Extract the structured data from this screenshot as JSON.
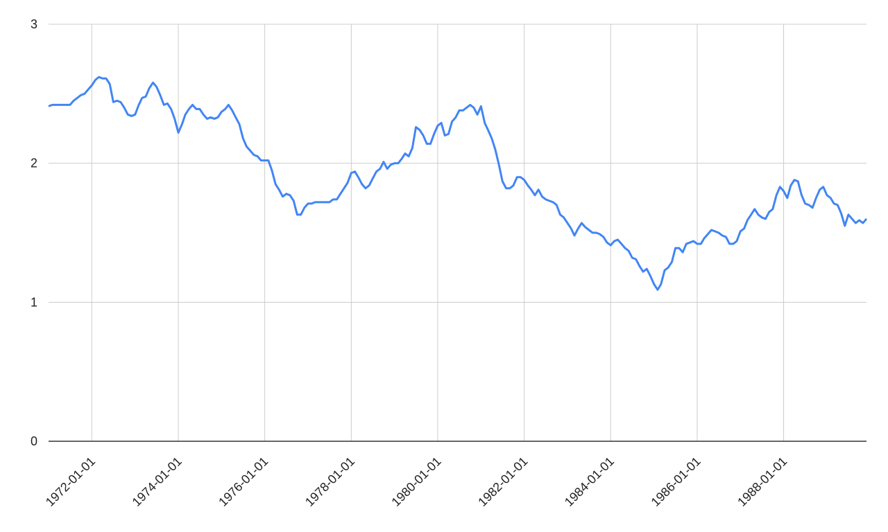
{
  "chart_data": {
    "type": "line",
    "x": [
      "1971-01-01",
      "1971-02-01",
      "1971-03-01",
      "1971-04-01",
      "1971-05-01",
      "1971-06-01",
      "1971-07-01",
      "1971-08-01",
      "1971-09-01",
      "1971-10-01",
      "1971-11-01",
      "1971-12-01",
      "1972-01-01",
      "1972-02-01",
      "1972-03-01",
      "1972-04-01",
      "1972-05-01",
      "1972-06-01",
      "1972-07-01",
      "1972-08-01",
      "1972-09-01",
      "1972-10-01",
      "1972-11-01",
      "1972-12-01",
      "1973-01-01",
      "1973-02-01",
      "1973-03-01",
      "1973-04-01",
      "1973-05-01",
      "1973-06-01",
      "1973-07-01",
      "1973-08-01",
      "1973-09-01",
      "1973-10-01",
      "1973-11-01",
      "1973-12-01",
      "1974-01-01",
      "1974-02-01",
      "1974-03-01",
      "1974-04-01",
      "1974-05-01",
      "1974-06-01",
      "1974-07-01",
      "1974-08-01",
      "1974-09-01",
      "1974-10-01",
      "1974-11-01",
      "1974-12-01",
      "1975-01-01",
      "1975-02-01",
      "1975-03-01",
      "1975-04-01",
      "1975-05-01",
      "1975-06-01",
      "1975-07-01",
      "1975-08-01",
      "1975-09-01",
      "1975-10-01",
      "1975-11-01",
      "1975-12-01",
      "1976-01-01",
      "1976-02-01",
      "1976-03-01",
      "1976-04-01",
      "1976-05-01",
      "1976-06-01",
      "1976-07-01",
      "1976-08-01",
      "1976-09-01",
      "1976-10-01",
      "1976-11-01",
      "1976-12-01",
      "1977-01-01",
      "1977-02-01",
      "1977-03-01",
      "1977-04-01",
      "1977-05-01",
      "1977-06-01",
      "1977-07-01",
      "1977-08-01",
      "1977-09-01",
      "1977-10-01",
      "1977-11-01",
      "1977-12-01",
      "1978-01-01",
      "1978-02-01",
      "1978-03-01",
      "1978-04-01",
      "1978-05-01",
      "1978-06-01",
      "1978-07-01",
      "1978-08-01",
      "1978-09-01",
      "1978-10-01",
      "1978-11-01",
      "1978-12-01",
      "1979-01-01",
      "1979-02-01",
      "1979-03-01",
      "1979-04-01",
      "1979-05-01",
      "1979-06-01",
      "1979-07-01",
      "1979-08-01",
      "1979-09-01",
      "1979-10-01",
      "1979-11-01",
      "1979-12-01",
      "1980-01-01",
      "1980-02-01",
      "1980-03-01",
      "1980-04-01",
      "1980-05-01",
      "1980-06-01",
      "1980-07-01",
      "1980-08-01",
      "1980-09-01",
      "1980-10-01",
      "1980-11-01",
      "1980-12-01",
      "1981-01-01",
      "1981-02-01",
      "1981-03-01",
      "1981-04-01",
      "1981-05-01",
      "1981-06-01",
      "1981-07-01",
      "1981-08-01",
      "1981-09-01",
      "1981-10-01",
      "1981-11-01",
      "1981-12-01",
      "1982-01-01",
      "1982-02-01",
      "1982-03-01",
      "1982-04-01",
      "1982-05-01",
      "1982-06-01",
      "1982-07-01",
      "1982-08-01",
      "1982-09-01",
      "1982-10-01",
      "1982-11-01",
      "1982-12-01",
      "1983-01-01",
      "1983-02-01",
      "1983-03-01",
      "1983-04-01",
      "1983-05-01",
      "1983-06-01",
      "1983-07-01",
      "1983-08-01",
      "1983-09-01",
      "1983-10-01",
      "1983-11-01",
      "1983-12-01",
      "1984-01-01",
      "1984-02-01",
      "1984-03-01",
      "1984-04-01",
      "1984-05-01",
      "1984-06-01",
      "1984-07-01",
      "1984-08-01",
      "1984-09-01",
      "1984-10-01",
      "1984-11-01",
      "1984-12-01",
      "1985-01-01",
      "1985-02-01",
      "1985-03-01",
      "1985-04-01",
      "1985-05-01",
      "1985-06-01",
      "1985-07-01",
      "1985-08-01",
      "1985-09-01",
      "1985-10-01",
      "1985-11-01",
      "1985-12-01",
      "1986-01-01",
      "1986-02-01",
      "1986-03-01",
      "1986-04-01",
      "1986-05-01",
      "1986-06-01",
      "1986-07-01",
      "1986-08-01",
      "1986-09-01",
      "1986-10-01",
      "1986-11-01",
      "1986-12-01",
      "1987-01-01",
      "1987-02-01",
      "1987-03-01",
      "1987-04-01",
      "1987-05-01",
      "1987-06-01",
      "1987-07-01",
      "1987-08-01",
      "1987-09-01",
      "1987-10-01",
      "1987-11-01",
      "1987-12-01",
      "1988-01-01",
      "1988-02-01",
      "1988-03-01",
      "1988-04-01",
      "1988-05-01",
      "1988-06-01",
      "1988-07-01",
      "1988-08-01",
      "1988-09-01",
      "1988-10-01",
      "1988-11-01",
      "1988-12-01",
      "1989-01-01",
      "1989-02-01",
      "1989-03-01",
      "1989-04-01",
      "1989-05-01",
      "1989-06-01",
      "1989-07-01",
      "1989-08-01",
      "1989-09-01",
      "1989-10-01",
      "1989-11-01",
      "1989-12-01"
    ],
    "series": [
      {
        "color": "#4285f4",
        "values": [
          2.41,
          2.42,
          2.42,
          2.42,
          2.42,
          2.42,
          2.42,
          2.45,
          2.47,
          2.49,
          2.5,
          2.53,
          2.56,
          2.6,
          2.62,
          2.61,
          2.61,
          2.57,
          2.44,
          2.45,
          2.44,
          2.4,
          2.35,
          2.34,
          2.35,
          2.42,
          2.47,
          2.48,
          2.54,
          2.58,
          2.55,
          2.49,
          2.42,
          2.43,
          2.39,
          2.32,
          2.22,
          2.28,
          2.35,
          2.39,
          2.42,
          2.39,
          2.39,
          2.35,
          2.32,
          2.33,
          2.32,
          2.33,
          2.37,
          2.39,
          2.42,
          2.38,
          2.33,
          2.28,
          2.18,
          2.12,
          2.09,
          2.06,
          2.05,
          2.02,
          2.02,
          2.02,
          1.95,
          1.85,
          1.81,
          1.76,
          1.78,
          1.77,
          1.73,
          1.63,
          1.63,
          1.68,
          1.71,
          1.71,
          1.72,
          1.72,
          1.72,
          1.72,
          1.72,
          1.74,
          1.74,
          1.78,
          1.82,
          1.86,
          1.93,
          1.94,
          1.9,
          1.85,
          1.82,
          1.84,
          1.89,
          1.94,
          1.96,
          2.01,
          1.96,
          1.99,
          2.0,
          2.0,
          2.03,
          2.07,
          2.05,
          2.11,
          2.26,
          2.24,
          2.2,
          2.14,
          2.14,
          2.21,
          2.27,
          2.29,
          2.2,
          2.21,
          2.3,
          2.33,
          2.38,
          2.38,
          2.4,
          2.42,
          2.4,
          2.35,
          2.41,
          2.29,
          2.24,
          2.18,
          2.1,
          1.99,
          1.87,
          1.82,
          1.82,
          1.84,
          1.9,
          1.9,
          1.88,
          1.84,
          1.81,
          1.77,
          1.81,
          1.76,
          1.74,
          1.73,
          1.72,
          1.7,
          1.63,
          1.61,
          1.57,
          1.53,
          1.48,
          1.53,
          1.57,
          1.54,
          1.52,
          1.5,
          1.5,
          1.49,
          1.47,
          1.43,
          1.41,
          1.44,
          1.45,
          1.42,
          1.39,
          1.37,
          1.32,
          1.31,
          1.26,
          1.22,
          1.24,
          1.19,
          1.13,
          1.09,
          1.13,
          1.23,
          1.25,
          1.29,
          1.39,
          1.39,
          1.36,
          1.42,
          1.43,
          1.44,
          1.42,
          1.42,
          1.46,
          1.49,
          1.52,
          1.51,
          1.5,
          1.48,
          1.47,
          1.42,
          1.42,
          1.44,
          1.51,
          1.53,
          1.59,
          1.63,
          1.67,
          1.63,
          1.61,
          1.6,
          1.65,
          1.67,
          1.77,
          1.83,
          1.8,
          1.75,
          1.84,
          1.88,
          1.87,
          1.77,
          1.71,
          1.7,
          1.68,
          1.75,
          1.81,
          1.83,
          1.77,
          1.75,
          1.71,
          1.7,
          1.64,
          1.55,
          1.63,
          1.6,
          1.57,
          1.59,
          1.57,
          1.6
        ]
      }
    ],
    "xlim": [
      "1971-01-01",
      "1989-12-01"
    ],
    "xticks": [
      "1972-01-01",
      "1974-01-01",
      "1976-01-01",
      "1978-01-01",
      "1980-01-01",
      "1982-01-01",
      "1984-01-01",
      "1986-01-01",
      "1988-01-01"
    ],
    "ylim": [
      0,
      3
    ],
    "yticks": [
      0,
      1,
      2,
      3
    ],
    "grid": true
  }
}
